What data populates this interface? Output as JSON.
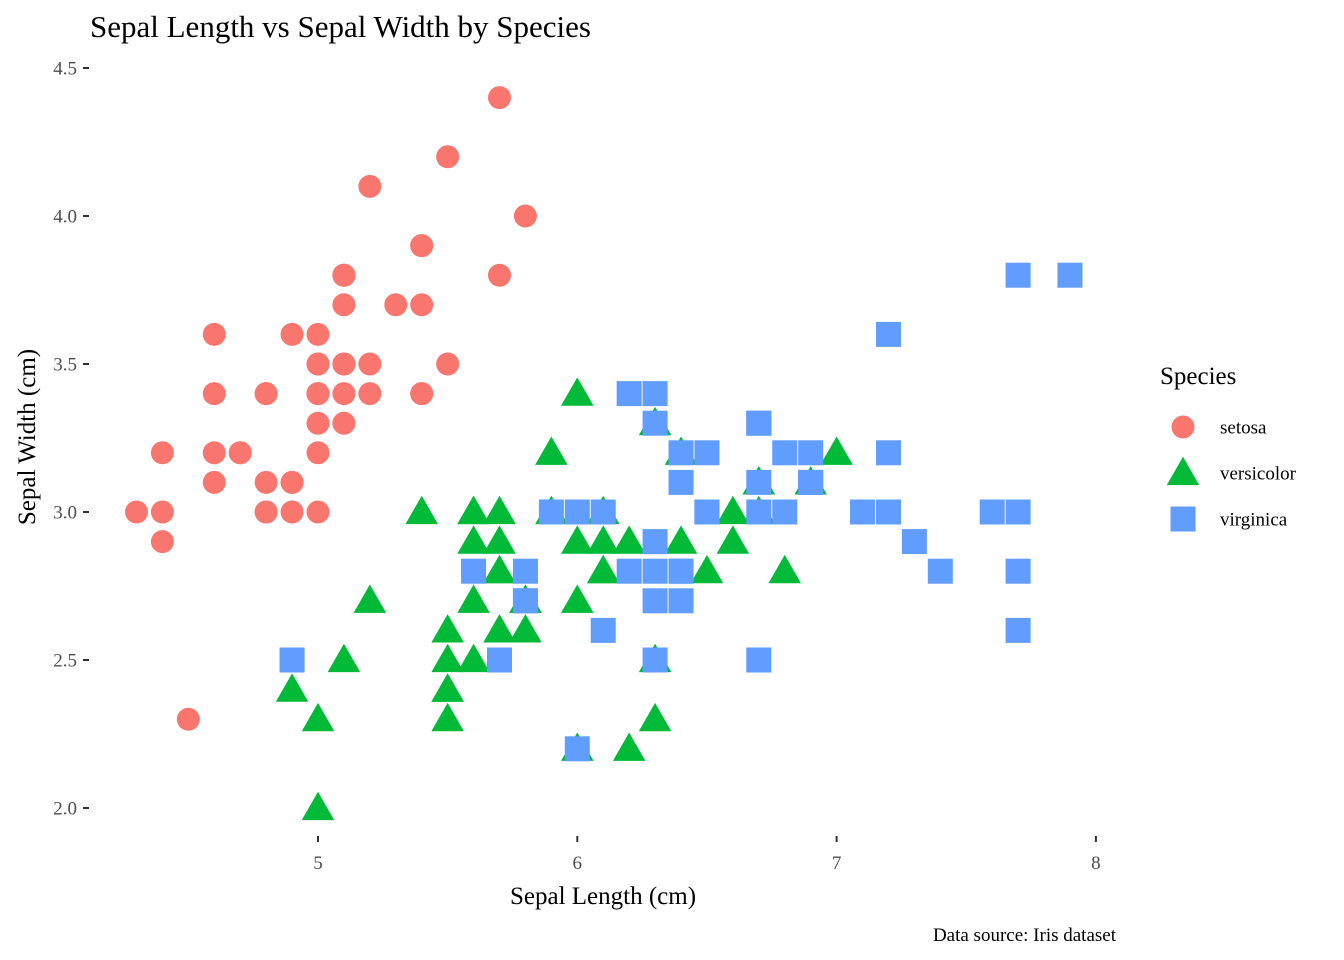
{
  "chart_data": {
    "type": "scatter",
    "title": "Sepal Length vs Sepal Width by Species",
    "xlabel": "Sepal Length (cm)",
    "ylabel": "Sepal Width (cm)",
    "caption": "Data source: Iris dataset",
    "legend_title": "Species",
    "legend_position": "right",
    "grid": false,
    "xlim": [
      4.2,
      8.1
    ],
    "ylim": [
      1.85,
      4.55
    ],
    "x_ticks": [
      5,
      6,
      7,
      8
    ],
    "x_tick_labels": [
      "5",
      "6",
      "7",
      "8"
    ],
    "y_ticks": [
      2.0,
      2.5,
      3.0,
      3.5,
      4.0,
      4.5
    ],
    "y_tick_labels": [
      "2.0",
      "2.5",
      "3.0",
      "3.5",
      "4.0",
      "4.5"
    ],
    "series": [
      {
        "name": "setosa",
        "shape": "circle",
        "color": "#F8766D",
        "x": [
          5.1,
          4.9,
          4.7,
          4.6,
          5.0,
          5.4,
          4.6,
          5.0,
          4.4,
          4.9,
          5.4,
          4.8,
          4.8,
          4.3,
          5.8,
          5.7,
          5.4,
          5.1,
          5.7,
          5.1,
          5.4,
          5.1,
          4.6,
          5.1,
          4.8,
          5.0,
          5.0,
          5.2,
          5.2,
          4.7,
          4.8,
          5.4,
          5.2,
          5.5,
          4.9,
          5.0,
          5.5,
          4.9,
          4.4,
          5.1,
          5.0,
          4.5,
          4.4,
          5.0,
          5.1,
          4.8,
          5.1,
          4.6,
          5.3,
          5.0
        ],
        "y": [
          3.5,
          3.0,
          3.2,
          3.1,
          3.6,
          3.9,
          3.4,
          3.4,
          2.9,
          3.1,
          3.7,
          3.4,
          3.0,
          3.0,
          4.0,
          4.4,
          3.9,
          3.5,
          3.8,
          3.8,
          3.4,
          3.7,
          3.6,
          3.3,
          3.4,
          3.0,
          3.4,
          3.5,
          3.4,
          3.2,
          3.1,
          3.4,
          4.1,
          4.2,
          3.1,
          3.2,
          3.5,
          3.6,
          3.0,
          3.4,
          3.5,
          2.3,
          3.2,
          3.5,
          3.8,
          3.0,
          3.8,
          3.2,
          3.7,
          3.3
        ]
      },
      {
        "name": "versicolor",
        "shape": "triangle",
        "color": "#00BA38",
        "x": [
          7.0,
          6.4,
          6.9,
          5.5,
          6.5,
          5.7,
          6.3,
          4.9,
          6.6,
          5.2,
          5.0,
          5.9,
          6.0,
          6.1,
          5.6,
          6.7,
          5.6,
          5.8,
          6.2,
          5.6,
          5.9,
          6.1,
          6.3,
          6.1,
          6.4,
          6.6,
          6.8,
          6.7,
          6.0,
          5.7,
          5.5,
          5.5,
          5.8,
          6.0,
          5.4,
          6.0,
          6.7,
          6.3,
          5.6,
          5.5,
          5.5,
          6.1,
          5.8,
          5.0,
          5.6,
          5.7,
          5.7,
          6.2,
          5.1,
          5.7
        ],
        "y": [
          3.2,
          3.2,
          3.1,
          2.3,
          2.8,
          2.8,
          3.3,
          2.4,
          2.9,
          2.7,
          2.0,
          3.0,
          2.2,
          2.9,
          2.9,
          3.1,
          3.0,
          2.7,
          2.2,
          2.5,
          3.2,
          2.8,
          2.5,
          2.8,
          2.9,
          3.0,
          2.8,
          3.0,
          2.9,
          2.6,
          2.4,
          2.4,
          2.7,
          2.7,
          3.0,
          3.4,
          3.1,
          2.3,
          3.0,
          2.5,
          2.6,
          3.0,
          2.6,
          2.3,
          2.7,
          3.0,
          2.9,
          2.9,
          2.5,
          2.8
        ]
      },
      {
        "name": "virginica",
        "shape": "square",
        "color": "#619CFF",
        "x": [
          6.3,
          5.8,
          7.1,
          6.3,
          6.5,
          7.6,
          4.9,
          7.3,
          6.7,
          7.2,
          6.5,
          6.4,
          6.8,
          5.7,
          5.8,
          6.4,
          6.5,
          7.7,
          7.7,
          6.0,
          6.9,
          5.6,
          7.7,
          6.3,
          6.7,
          7.2,
          6.2,
          6.1,
          6.4,
          7.2,
          7.4,
          7.9,
          6.4,
          6.3,
          6.1,
          7.7,
          6.3,
          6.4,
          6.0,
          6.9,
          6.7,
          6.9,
          5.8,
          6.8,
          6.7,
          6.7,
          6.3,
          6.5,
          6.2,
          5.9
        ],
        "y": [
          3.3,
          2.7,
          3.0,
          2.9,
          3.0,
          3.0,
          2.5,
          2.9,
          2.5,
          3.6,
          3.2,
          2.7,
          3.0,
          2.5,
          2.8,
          3.2,
          3.0,
          3.8,
          2.6,
          2.2,
          3.2,
          2.8,
          2.8,
          2.7,
          3.3,
          3.2,
          2.8,
          3.0,
          2.8,
          3.0,
          2.8,
          3.8,
          2.8,
          2.8,
          2.6,
          3.0,
          3.4,
          3.1,
          3.0,
          3.1,
          3.1,
          3.1,
          2.7,
          3.2,
          3.3,
          3.0,
          2.5,
          3.0,
          3.4,
          3.0
        ]
      }
    ]
  }
}
